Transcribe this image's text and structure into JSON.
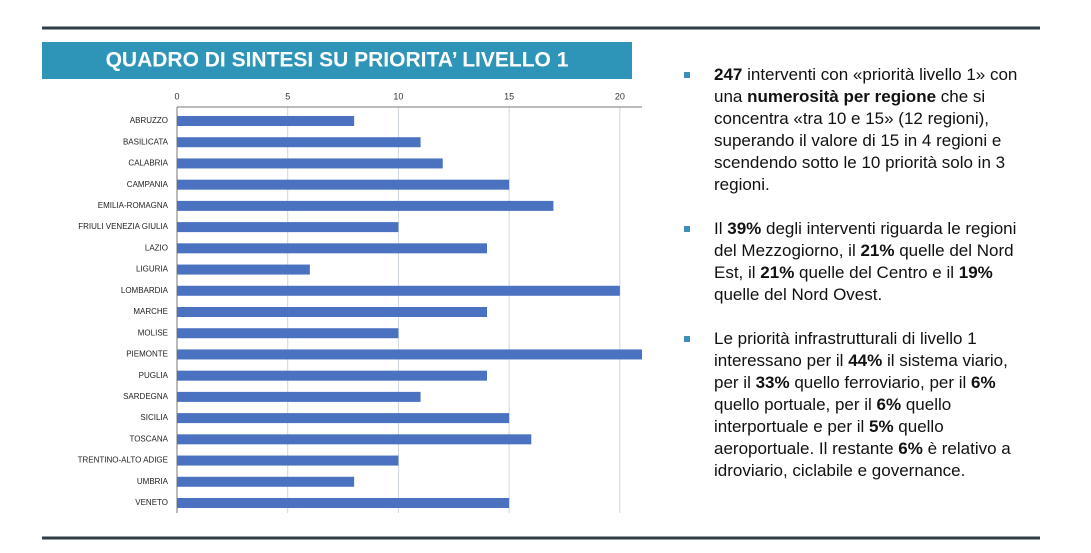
{
  "title": "QUADRO DI SINTESI SU PRIORITA’ LIVELLO 1",
  "chart_data": {
    "type": "hbar",
    "color": "#4a72c0",
    "grid": true,
    "categories": [
      "ABRUZZO",
      "BASILICATA",
      "CALABRIA",
      "CAMPANIA",
      "EMILIA-ROMAGNA",
      "FRIULI VENEZIA GIULIA",
      "LAZIO",
      "LIGURIA",
      "LOMBARDIA",
      "MARCHE",
      "MOLISE",
      "PIEMONTE",
      "PUGLIA",
      "SARDEGNA",
      "SICILIA",
      "TOSCANA",
      "TRENTINO-ALTO ADIGE",
      "UMBRIA",
      "VENETO"
    ],
    "values": [
      8,
      11,
      12,
      15,
      17,
      10,
      14,
      6,
      20,
      14,
      10,
      21,
      14,
      11,
      15,
      16,
      10,
      8,
      15
    ],
    "xlim": [
      0,
      21
    ],
    "xticks": [
      0,
      5,
      10,
      15,
      20
    ]
  },
  "bullets": [
    [
      {
        "text": "247",
        "bold": true
      },
      {
        "text": " interventi con «priorità livello 1» con una ",
        "bold": false
      },
      {
        "text": "numerosità per regione",
        "bold": true
      },
      {
        "text": " che si concentra «tra 10 e 15» (12 regioni), superando il valore di 15 in 4 regioni e scendendo sotto le 10 priorità solo in 3 regioni.",
        "bold": false
      }
    ],
    [
      {
        "text": "Il ",
        "bold": false
      },
      {
        "text": "39%",
        "bold": true
      },
      {
        "text": " degli interventi riguarda le regioni del Mezzogiorno, il ",
        "bold": false
      },
      {
        "text": "21%",
        "bold": true
      },
      {
        "text": " quelle del Nord Est, il ",
        "bold": false
      },
      {
        "text": "21%",
        "bold": true
      },
      {
        "text": " quelle del Centro e il ",
        "bold": false
      },
      {
        "text": "19%",
        "bold": true
      },
      {
        "text": " quelle del Nord Ovest.",
        "bold": false
      }
    ],
    [
      {
        "text": "Le priorità infrastrutturali di livello 1 interessano per il ",
        "bold": false
      },
      {
        "text": "44%",
        "bold": true
      },
      {
        "text": " il sistema viario, per il ",
        "bold": false
      },
      {
        "text": "33%",
        "bold": true
      },
      {
        "text": " quello ferroviario, per il ",
        "bold": false
      },
      {
        "text": "6%",
        "bold": true
      },
      {
        "text": " quello portuale, per il ",
        "bold": false
      },
      {
        "text": "6%",
        "bold": true
      },
      {
        "text": " quello interportuale e per il ",
        "bold": false
      },
      {
        "text": "5%",
        "bold": true
      },
      {
        "text": " quello aeroportuale. Il restante ",
        "bold": false
      },
      {
        "text": "6%",
        "bold": true
      },
      {
        "text": " è relativo a idroviario, ciclabile e governance.",
        "bold": false
      }
    ]
  ]
}
